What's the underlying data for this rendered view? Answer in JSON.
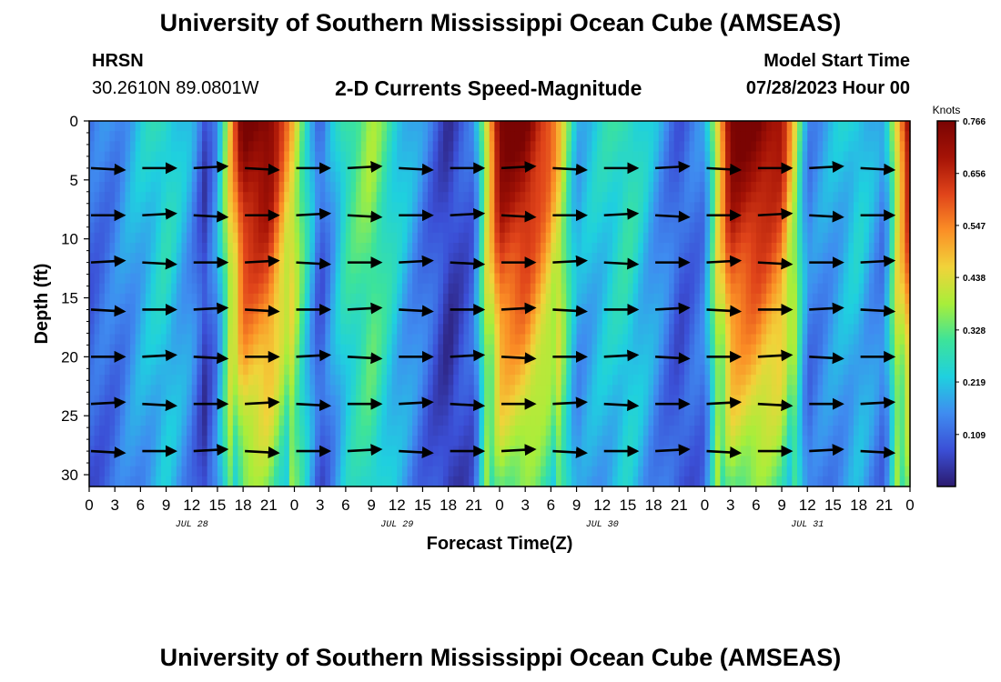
{
  "header": {
    "title": "University of Southern Mississippi Ocean Cube (AMSEAS)",
    "station": "HRSN",
    "coordinates": "30.2610N  89.0801W",
    "subtitle": "2-D Currents Speed-Magnitude",
    "model_start_label": "Model Start Time",
    "model_start_value": "07/28/2023 Hour 00"
  },
  "footer": {
    "repeated_title": "University of Southern Mississippi Ocean Cube (AMSEAS)"
  },
  "chart_data": {
    "type": "heatmap",
    "title": "2-D Currents Speed-Magnitude",
    "xlabel": "Forecast Time(Z)",
    "ylabel": "Depth (ft)",
    "xlim": [
      0,
      96
    ],
    "ylim": [
      0,
      31
    ],
    "x_ticks": [
      0,
      3,
      6,
      9,
      12,
      15,
      18,
      21,
      24,
      27,
      30,
      33,
      36,
      39,
      42,
      45,
      48,
      51,
      54,
      57,
      60,
      63,
      66,
      69,
      72,
      75,
      78,
      81,
      84,
      87,
      90,
      93,
      96
    ],
    "x_tick_labels": [
      "0",
      "3",
      "6",
      "9",
      "12",
      "15",
      "18",
      "21",
      "0",
      "3",
      "6",
      "9",
      "12",
      "15",
      "18",
      "21",
      "0",
      "3",
      "6",
      "9",
      "12",
      "15",
      "18",
      "21",
      "0",
      "3",
      "6",
      "9",
      "12",
      "15",
      "18",
      "21",
      "0"
    ],
    "date_labels": [
      {
        "x": 12,
        "text": "JUL 28"
      },
      {
        "x": 36,
        "text": "JUL 29"
      },
      {
        "x": 60,
        "text": "JUL 30"
      },
      {
        "x": 84,
        "text": "JUL 31"
      }
    ],
    "y_ticks": [
      0,
      5,
      10,
      15,
      20,
      25,
      30
    ],
    "y_tick_labels": [
      "0",
      "5",
      "10",
      "15",
      "20",
      "25",
      "30"
    ],
    "colorbar": {
      "unit": "Knots",
      "min": 0.0,
      "max": 0.766,
      "tick_values": [
        0.109,
        0.219,
        0.328,
        0.438,
        0.547,
        0.656,
        0.766
      ],
      "tick_labels": [
        "0.109",
        "0.219",
        "0.328",
        "0.438",
        "0.547",
        "0.656",
        "0.766"
      ],
      "colormap": [
        "#2b1a6e",
        "#3b4fd6",
        "#3f8cf0",
        "#1fd0df",
        "#3de39a",
        "#a8ee3a",
        "#f1d33a",
        "#fb8f26",
        "#e0441a",
        "#a51306",
        "#7a0403"
      ]
    },
    "speed_model": {
      "description": "approximate speed (knots) by forecast hour; surface values, depth attenuated",
      "hours": [
        0,
        3,
        6,
        9,
        12,
        13.5,
        15,
        18,
        21,
        24,
        27,
        30,
        33,
        36,
        39,
        42,
        45,
        48,
        51,
        54,
        57,
        60,
        63,
        66,
        69,
        72,
        75,
        78,
        81,
        84,
        87,
        90,
        93,
        96
      ],
      "surface": [
        0.12,
        0.15,
        0.22,
        0.28,
        0.18,
        0.07,
        0.18,
        0.78,
        0.78,
        0.45,
        0.1,
        0.3,
        0.38,
        0.25,
        0.15,
        0.05,
        0.12,
        0.78,
        0.78,
        0.6,
        0.2,
        0.25,
        0.3,
        0.2,
        0.1,
        0.15,
        0.78,
        0.78,
        0.7,
        0.15,
        0.2,
        0.25,
        0.15,
        0.78
      ]
    },
    "arrow_depths": [
      4,
      8,
      12,
      16,
      20,
      24,
      28
    ],
    "arrow_hours": [
      0,
      6,
      12,
      18,
      24,
      30,
      36,
      42,
      48,
      54,
      60,
      66,
      72,
      78,
      84,
      90,
      96
    ]
  }
}
